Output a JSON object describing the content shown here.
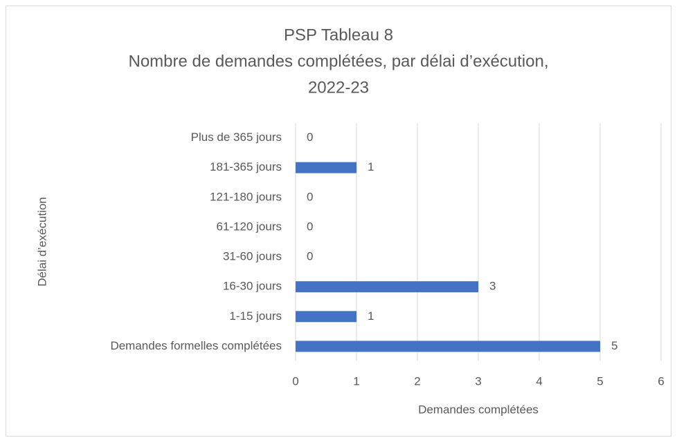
{
  "chart_data": {
    "type": "barh",
    "title": [
      "PSP Tableau 8",
      "Nombre de demandes complétées, par délai d’exécution,",
      "2022-23"
    ],
    "categories": [
      "Plus de 365 jours",
      "181-365 jours",
      "121-180 jours",
      "61-120 jours",
      "31-60 jours",
      "16-30 jours",
      "1-15 jours",
      "Demandes formelles complétées"
    ],
    "values": [
      0,
      1,
      0,
      0,
      0,
      3,
      1,
      5
    ],
    "color": "#4472c4",
    "xlim": [
      0,
      6
    ],
    "xticks": [
      0,
      1,
      2,
      3,
      4,
      5,
      6
    ],
    "xlabel": "Demandes complétées",
    "ylabel": "Délai d’exécution",
    "grid": true
  }
}
